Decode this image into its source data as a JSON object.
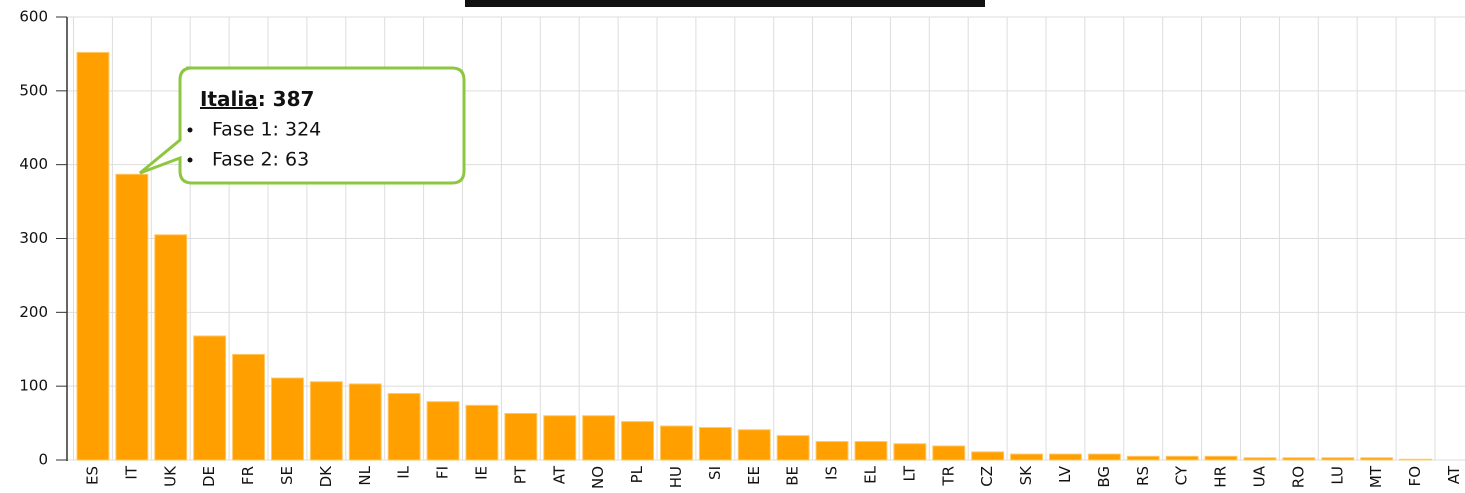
{
  "chart_data": {
    "type": "bar",
    "categories": [
      "ES",
      "IT",
      "UK",
      "DE",
      "FR",
      "SE",
      "DK",
      "NL",
      "IL",
      "FI",
      "IE",
      "PT",
      "AT",
      "NO",
      "PL",
      "HU",
      "SI",
      "EE",
      "BE",
      "IS",
      "EL",
      "LT",
      "TR",
      "CZ",
      "SK",
      "LV",
      "BG",
      "RS",
      "CY",
      "HR",
      "UA",
      "RO",
      "LU",
      "MT",
      "FO",
      "AT"
    ],
    "values": [
      552,
      387,
      305,
      168,
      143,
      111,
      106,
      103,
      90,
      79,
      74,
      63,
      60,
      60,
      52,
      46,
      44,
      41,
      33,
      25,
      25,
      22,
      19,
      11,
      8,
      8,
      8,
      5,
      5,
      5,
      3,
      3,
      3,
      3,
      1,
      0
    ],
    "color": "#ff9f00",
    "ylim": [
      0,
      600
    ],
    "yticks": [
      0,
      100,
      200,
      300,
      400,
      500,
      600
    ],
    "grid": true,
    "annotation": {
      "title": "Italia",
      "title_rest": ": 387",
      "items": [
        "Fase 1: 324",
        "Fase 2: 63"
      ]
    }
  }
}
